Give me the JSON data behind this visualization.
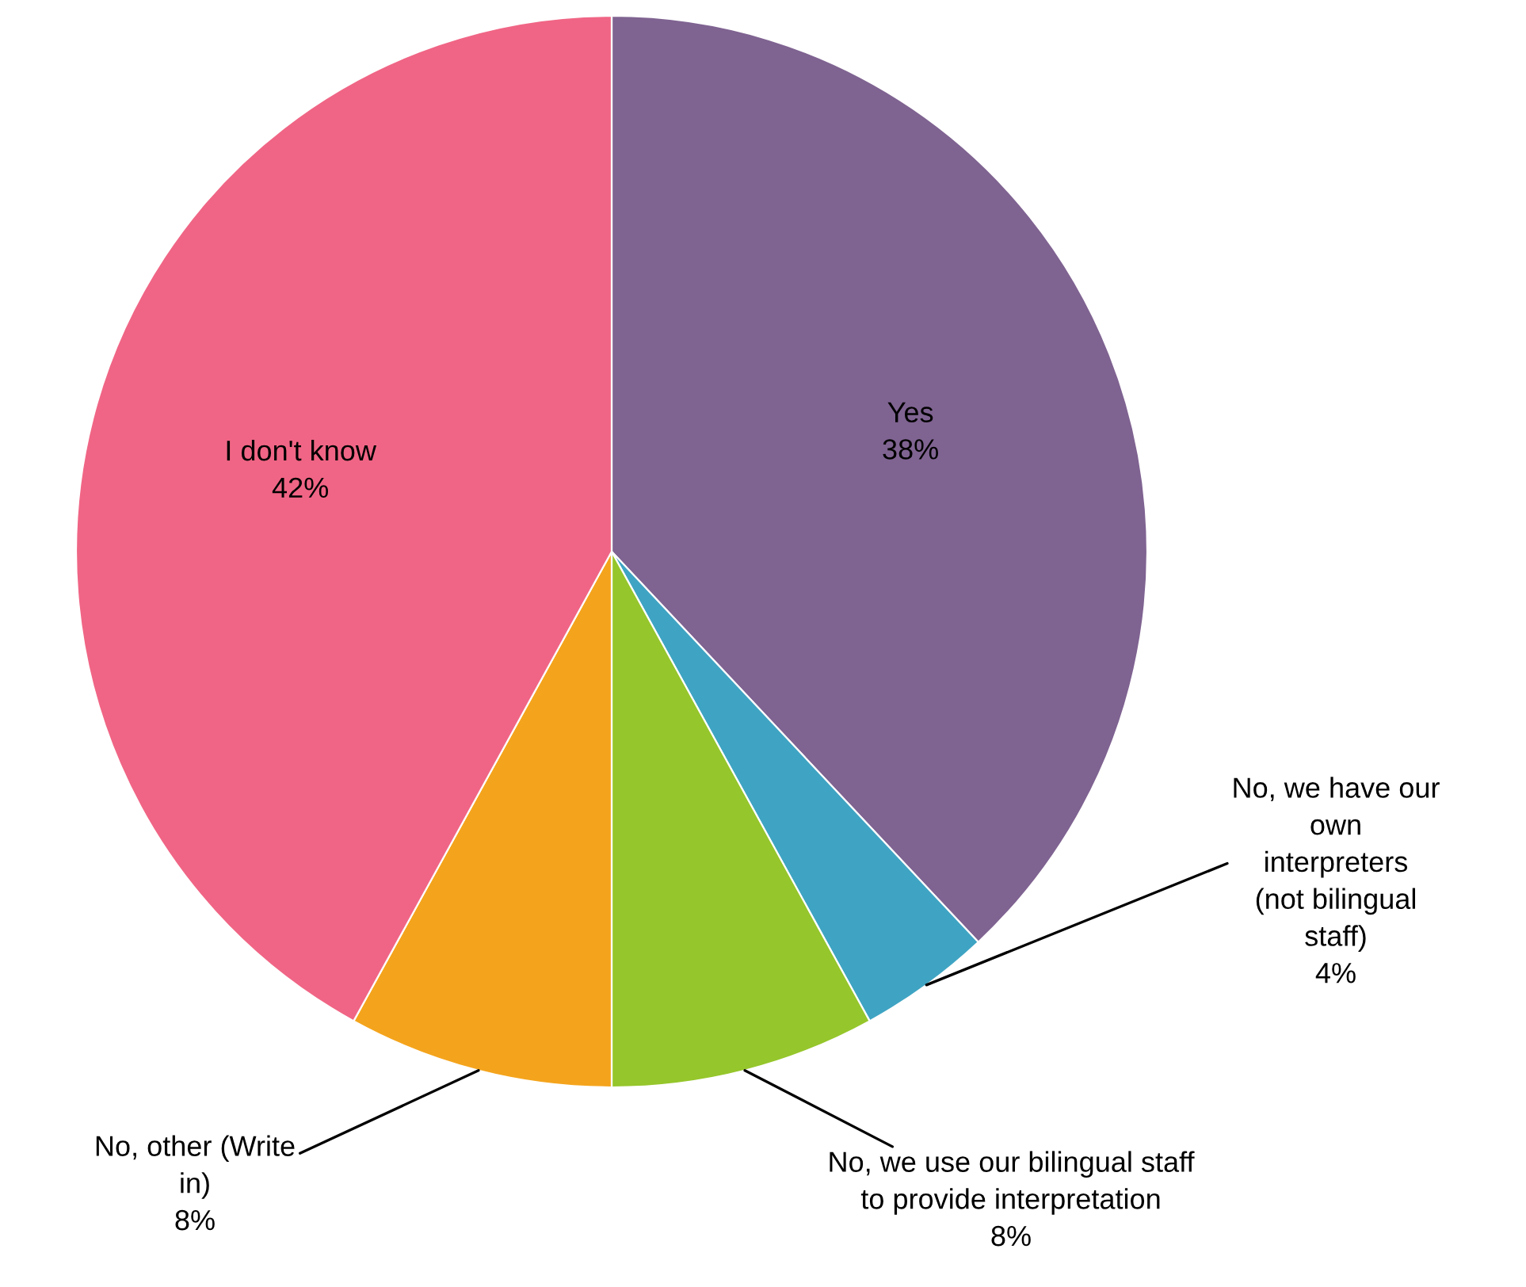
{
  "chart_data": {
    "type": "pie",
    "categories": [
      "Yes",
      "No, we have our own interpreters (not bilingual staff)",
      "No, we use our bilingual staff to provide interpretation",
      "No, other (Write in)",
      "I don't know"
    ],
    "values": [
      38,
      4,
      8,
      8,
      42
    ],
    "value_labels": [
      "38%",
      "4%",
      "8%",
      "8%",
      "42%"
    ],
    "colors": [
      "#7f6391",
      "#3fa4c3",
      "#95c62b",
      "#f4a41c",
      "#f06585"
    ],
    "legend": false
  }
}
